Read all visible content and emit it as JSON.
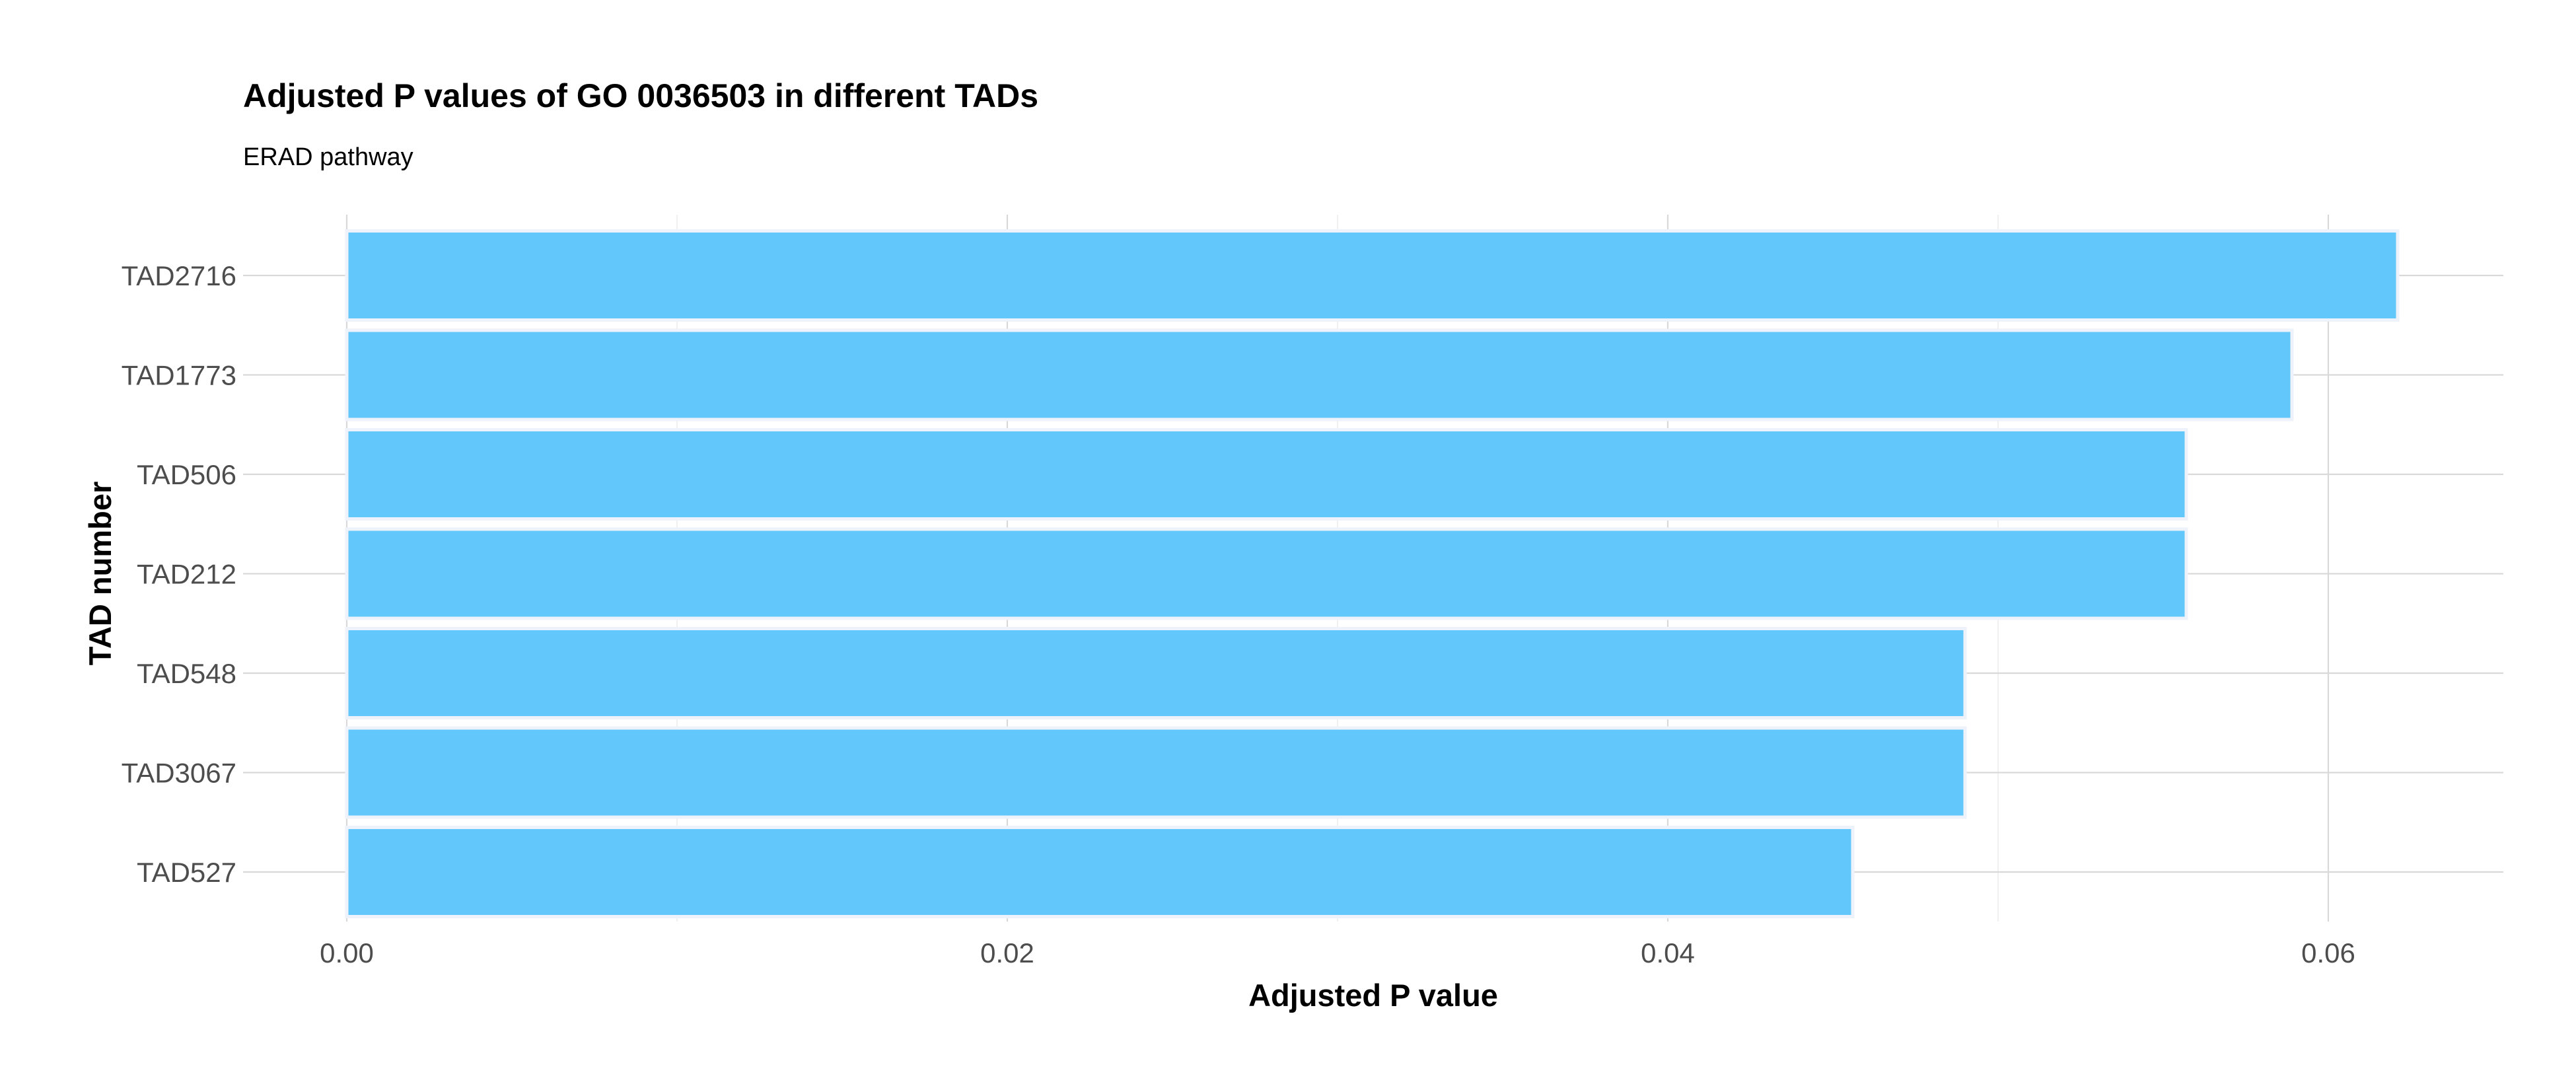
{
  "chart_data": {
    "type": "bar",
    "orientation": "horizontal",
    "title": "Adjusted P values of GO 0036503 in different TADs",
    "subtitle": "ERAD pathway",
    "xlabel": "Adjusted P value",
    "ylabel": "TAD number",
    "categories": [
      "TAD2716",
      "TAD1773",
      "TAD506",
      "TAD212",
      "TAD548",
      "TAD3067",
      "TAD527"
    ],
    "values": [
      0.0621,
      0.0589,
      0.0557,
      0.0557,
      0.049,
      0.049,
      0.0456
    ],
    "xlim": [
      0,
      0.065
    ],
    "x_ticks": [
      0,
      0.02,
      0.04,
      0.06
    ],
    "x_tick_labels": [
      "0.00",
      "0.02",
      "0.04",
      "0.06"
    ],
    "grid": true,
    "legend": "none",
    "bar_color": "#62c8fb",
    "bar_outline_color": "#eef2fa"
  }
}
